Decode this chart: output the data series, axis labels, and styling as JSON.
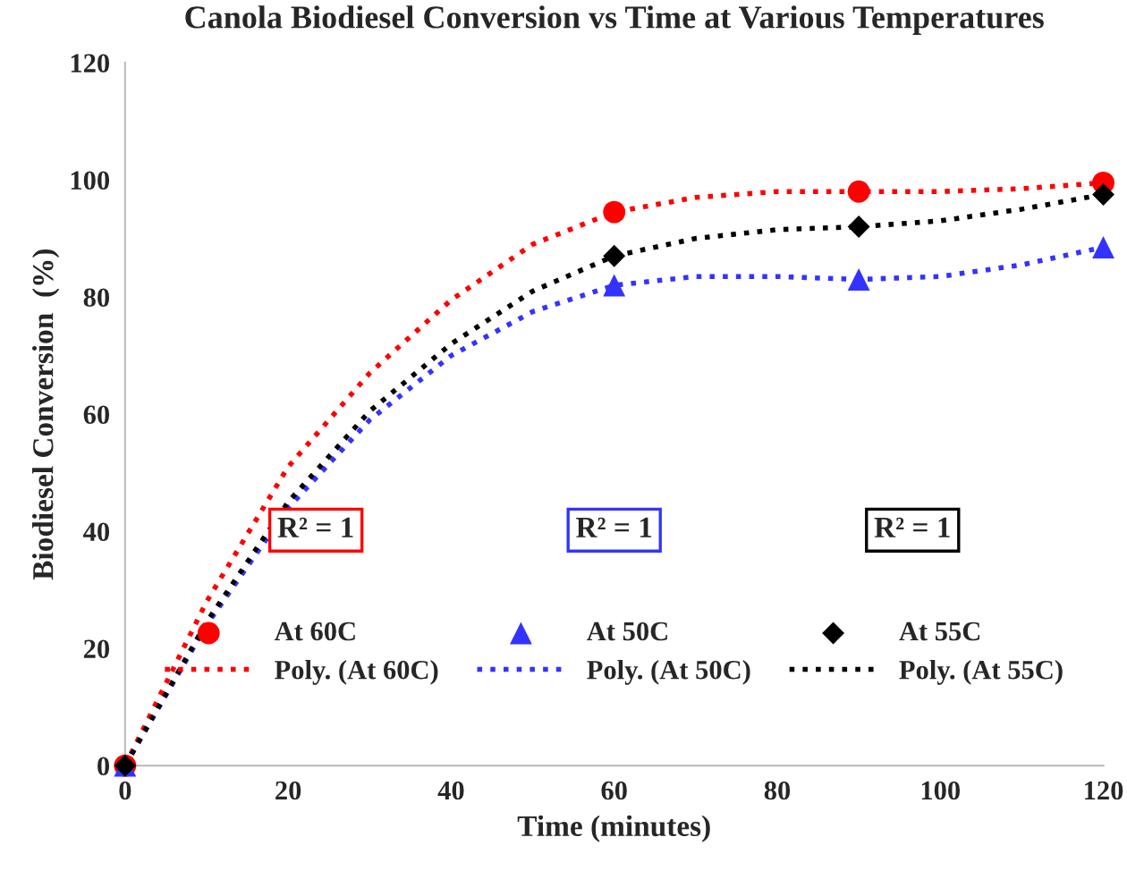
{
  "chart_data": {
    "type": "scatter",
    "title": "Canola Biodiesel Conversion vs Time at Various Temperatures",
    "xlabel": "Time (minutes)",
    "ylabel": "Biodiesel Conversion  (%)",
    "xlim": [
      0,
      120
    ],
    "xticks": [
      0,
      20,
      40,
      60,
      80,
      100,
      120
    ],
    "ylim": [
      0,
      120
    ],
    "yticks": [
      0,
      20,
      40,
      60,
      80,
      100,
      120
    ],
    "grid": false,
    "legend": "bottom",
    "annotations": [
      "R² = 1",
      "R² = 1",
      "R² = 1"
    ],
    "series": [
      {
        "name": "At 60C",
        "marker": "circle",
        "color": "#ff0000",
        "x": [
          0,
          60,
          90,
          120
        ],
        "values": [
          0,
          94.5,
          98,
          99.5
        ]
      },
      {
        "name": "Poly. (At 60C)",
        "type": "line",
        "line_style": "dotted",
        "color": "#ff0000",
        "x": [
          0,
          10,
          20,
          30,
          40,
          50,
          60,
          70,
          80,
          90,
          100,
          110,
          120
        ],
        "values": [
          0,
          28,
          51,
          67,
          79.5,
          89,
          94.5,
          97,
          98,
          98,
          98,
          98.5,
          99.5
        ]
      },
      {
        "name": "At 50C",
        "marker": "triangle",
        "color": "#3333ff",
        "x": [
          0,
          60,
          90,
          120
        ],
        "values": [
          0,
          82,
          83,
          88.5
        ]
      },
      {
        "name": "Poly. (At 50C)",
        "type": "line",
        "line_style": "dotted",
        "color": "#3333ff",
        "x": [
          0,
          10,
          20,
          30,
          40,
          50,
          60,
          70,
          80,
          90,
          100,
          110,
          120
        ],
        "values": [
          0,
          24,
          44,
          59,
          70,
          77.5,
          82,
          83.5,
          83.5,
          83,
          83.5,
          85.5,
          88.5
        ]
      },
      {
        "name": "At 55C",
        "marker": "diamond",
        "color": "#000000",
        "x": [
          0,
          60,
          90,
          120
        ],
        "values": [
          0,
          87,
          92,
          97.5
        ]
      },
      {
        "name": "Poly. (At 55C)",
        "type": "line",
        "line_style": "dotted",
        "color": "#000000",
        "x": [
          0,
          10,
          20,
          30,
          40,
          50,
          60,
          70,
          80,
          90,
          100,
          110,
          120
        ],
        "values": [
          0,
          24.5,
          45,
          60.5,
          72,
          81,
          87,
          90,
          91.5,
          92,
          93,
          95,
          97.5
        ]
      }
    ]
  }
}
